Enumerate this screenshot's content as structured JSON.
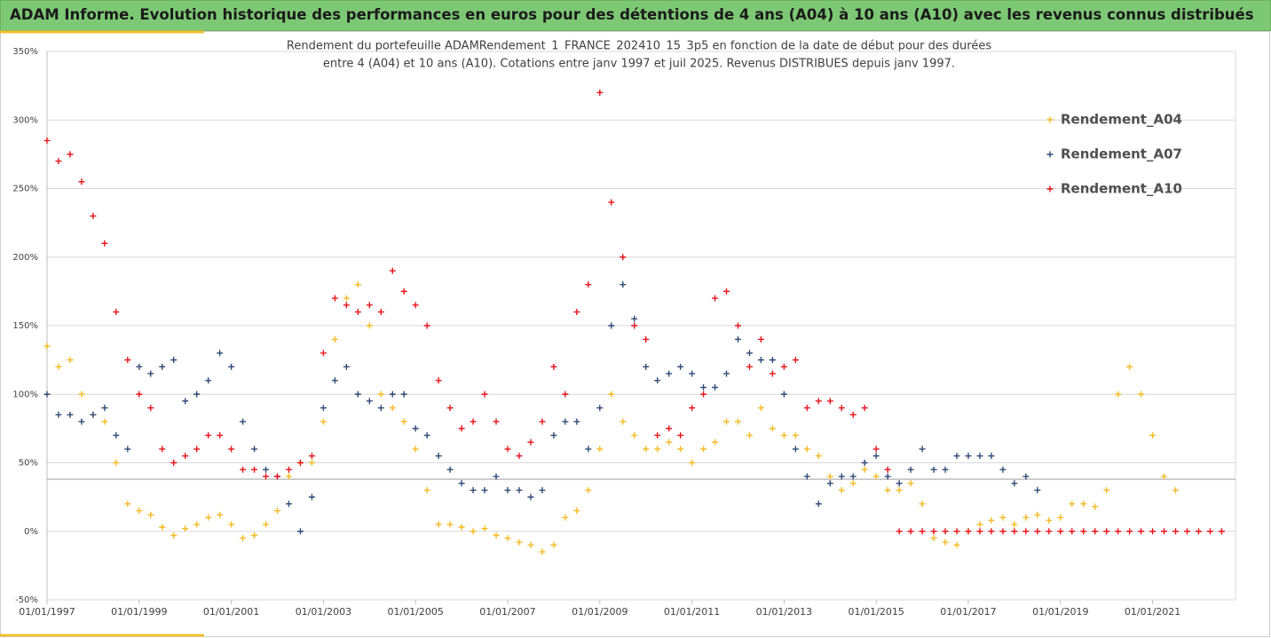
{
  "chart_data": {
    "type": "scatter",
    "title": "ADAM Informe. Evolution historique des performances en euros pour des détentions de 4 ans (A04) à 10 ans (A10) avec les revenus connus distribués",
    "subtitle": [
      "Rendement du portefeuille ADAMRendement_1_FRANCE_202410_15_3p5  en fonction de la date de début pour des durées",
      "entre 4 (A04) et 10 ans (A10). Cotations entre janv 1997 et juil 2025. Revenus DISTRIBUES depuis janv 1997."
    ],
    "xlim": [
      1997,
      2022.8
    ],
    "xticks": [
      {
        "value": 1997,
        "label": "01/01/1997"
      },
      {
        "value": 1999,
        "label": "01/01/1999"
      },
      {
        "value": 2001,
        "label": "01/01/2001"
      },
      {
        "value": 2003,
        "label": "01/01/2003"
      },
      {
        "value": 2005,
        "label": "01/01/2005"
      },
      {
        "value": 2007,
        "label": "01/01/2007"
      },
      {
        "value": 2009,
        "label": "01/01/2009"
      },
      {
        "value": 2011,
        "label": "01/01/2011"
      },
      {
        "value": 2013,
        "label": "01/01/2013"
      },
      {
        "value": 2015,
        "label": "01/01/2015"
      },
      {
        "value": 2017,
        "label": "01/01/2017"
      },
      {
        "value": 2019,
        "label": "01/01/2019"
      },
      {
        "value": 2021,
        "label": "01/01/2021"
      }
    ],
    "ylim": [
      -50,
      350
    ],
    "yticks": [
      {
        "value": -50,
        "label": "-50%"
      },
      {
        "value": 0,
        "label": "0%"
      },
      {
        "value": 50,
        "label": "50%"
      },
      {
        "value": 100,
        "label": "100%"
      },
      {
        "value": 150,
        "label": "150%"
      },
      {
        "value": 200,
        "label": "200%"
      },
      {
        "value": 250,
        "label": "250%"
      },
      {
        "value": 300,
        "label": "300%"
      },
      {
        "value": 350,
        "label": "350%"
      }
    ],
    "grid": true,
    "reference_line": 38,
    "legend": "right",
    "series": [
      {
        "name": "Rendement_A04",
        "color": "#f5b921",
        "x": [
          1997,
          1997.25,
          1997.5,
          1997.75,
          1998,
          1998.25,
          1998.5,
          1998.75,
          1999,
          1999.25,
          1999.5,
          1999.75,
          2000,
          2000.25,
          2000.5,
          2000.75,
          2001,
          2001.25,
          2001.5,
          2001.75,
          2002,
          2002.25,
          2002.5,
          2002.75,
          2003,
          2003.25,
          2003.5,
          2003.75,
          2004,
          2004.25,
          2004.5,
          2004.75,
          2005,
          2005.25,
          2005.5,
          2005.75,
          2006,
          2006.25,
          2006.5,
          2006.75,
          2007,
          2007.25,
          2007.5,
          2007.75,
          2008,
          2008.25,
          2008.5,
          2008.75,
          2009,
          2009.25,
          2009.5,
          2009.75,
          2010,
          2010.25,
          2010.5,
          2010.75,
          2011,
          2011.25,
          2011.5,
          2011.75,
          2012,
          2012.25,
          2012.5,
          2012.75,
          2013,
          2013.25,
          2013.5,
          2013.75,
          2014,
          2014.25,
          2014.5,
          2014.75,
          2015,
          2015.25,
          2015.5,
          2015.75,
          2016,
          2016.25,
          2016.5,
          2016.75,
          2017,
          2017.25,
          2017.5,
          2017.75,
          2018,
          2018.25,
          2018.5,
          2018.75,
          2019,
          2019.25,
          2019.5,
          2019.75,
          2020,
          2020.25,
          2020.5,
          2020.75,
          2021,
          2021.25,
          2021.5
        ],
        "values": [
          135,
          120,
          125,
          100,
          85,
          80,
          50,
          20,
          15,
          12,
          3,
          -3,
          2,
          5,
          10,
          12,
          5,
          -5,
          -3,
          5,
          15,
          40,
          50,
          50,
          80,
          140,
          170,
          180,
          150,
          100,
          90,
          80,
          60,
          30,
          5,
          5,
          3,
          0,
          2,
          -3,
          -5,
          -8,
          -10,
          -15,
          -10,
          10,
          15,
          30,
          60,
          100,
          80,
          70,
          60,
          60,
          65,
          60,
          50,
          60,
          65,
          80,
          80,
          70,
          90,
          75,
          70,
          70,
          60,
          55,
          40,
          30,
          35,
          45,
          40,
          30,
          30,
          35,
          20,
          -5,
          -8,
          -10,
          0,
          5,
          8,
          10,
          5,
          10,
          12,
          8,
          10,
          20,
          20,
          18,
          30,
          100,
          120,
          100,
          70,
          40,
          30
        ]
      },
      {
        "name": "Rendement_A07",
        "color": "#2e4a78",
        "x": [
          1997,
          1997.25,
          1997.5,
          1997.75,
          1998,
          1998.25,
          1998.5,
          1998.75,
          1999,
          1999.25,
          1999.5,
          1999.75,
          2000,
          2000.25,
          2000.5,
          2000.75,
          2001,
          2001.25,
          2001.5,
          2001.75,
          2002,
          2002.25,
          2002.5,
          2002.75,
          2003,
          2003.25,
          2003.5,
          2003.75,
          2004,
          2004.25,
          2004.5,
          2004.75,
          2005,
          2005.25,
          2005.5,
          2005.75,
          2006,
          2006.25,
          2006.5,
          2006.75,
          2007,
          2007.25,
          2007.5,
          2007.75,
          2008,
          2008.25,
          2008.5,
          2008.75,
          2009,
          2009.25,
          2009.5,
          2009.75,
          2010,
          2010.25,
          2010.5,
          2010.75,
          2011,
          2011.25,
          2011.5,
          2011.75,
          2012,
          2012.25,
          2012.5,
          2012.75,
          2013,
          2013.25,
          2013.5,
          2013.75,
          2014,
          2014.25,
          2014.5,
          2014.75,
          2015,
          2015.25,
          2015.5,
          2015.75,
          2016,
          2016.25,
          2016.5,
          2016.75,
          2017,
          2017.25,
          2017.5,
          2017.75,
          2018,
          2018.25,
          2018.5
        ],
        "values": [
          100,
          85,
          85,
          80,
          85,
          90,
          70,
          60,
          120,
          115,
          120,
          125,
          95,
          100,
          110,
          130,
          120,
          80,
          60,
          45,
          40,
          20,
          0,
          25,
          90,
          110,
          120,
          100,
          95,
          90,
          100,
          100,
          75,
          70,
          55,
          45,
          35,
          30,
          30,
          40,
          30,
          30,
          25,
          30,
          70,
          80,
          80,
          60,
          90,
          150,
          180,
          155,
          120,
          110,
          115,
          120,
          115,
          105,
          105,
          115,
          140,
          130,
          125,
          125,
          100,
          60,
          40,
          20,
          35,
          40,
          40,
          50,
          55,
          40,
          35,
          45,
          60,
          45,
          45,
          55,
          55,
          55,
          55,
          45,
          35,
          40,
          30
        ]
      },
      {
        "name": "Rendement_A10",
        "color": "#e8141b",
        "x": [
          1997,
          1997.25,
          1997.5,
          1997.75,
          1998,
          1998.25,
          1998.5,
          1998.75,
          1999,
          1999.25,
          1999.5,
          1999.75,
          2000,
          2000.25,
          2000.5,
          2000.75,
          2001,
          2001.25,
          2001.5,
          2001.75,
          2002,
          2002.25,
          2002.5,
          2002.75,
          2003,
          2003.25,
          2003.5,
          2003.75,
          2004,
          2004.25,
          2004.5,
          2004.75,
          2005,
          2005.25,
          2005.5,
          2005.75,
          2006,
          2006.25,
          2006.5,
          2006.75,
          2007,
          2007.25,
          2007.5,
          2007.75,
          2008,
          2008.25,
          2008.5,
          2008.75,
          2009,
          2009.25,
          2009.5,
          2009.75,
          2010,
          2010.25,
          2010.5,
          2010.75,
          2011,
          2011.25,
          2011.5,
          2011.75,
          2012,
          2012.25,
          2012.5,
          2012.75,
          2013,
          2013.25,
          2013.5,
          2013.75,
          2014,
          2014.25,
          2014.5,
          2014.75,
          2015,
          2015.25,
          2015.5,
          2015.75,
          2016,
          2016.25,
          2016.5,
          2016.75,
          2017,
          2017.25,
          2017.5,
          2017.75,
          2018,
          2018.25,
          2018.5,
          2018.75,
          2019,
          2019.25,
          2019.5,
          2019.75,
          2020,
          2020.25,
          2020.5,
          2020.75,
          2021,
          2021.25,
          2021.5,
          2021.75,
          2022,
          2022.25,
          2022.5
        ],
        "values": [
          285,
          270,
          275,
          255,
          230,
          210,
          160,
          125,
          100,
          90,
          60,
          50,
          55,
          60,
          70,
          70,
          60,
          45,
          45,
          40,
          40,
          45,
          50,
          55,
          130,
          170,
          165,
          160,
          165,
          160,
          190,
          175,
          165,
          150,
          110,
          90,
          75,
          80,
          100,
          80,
          60,
          55,
          65,
          80,
          120,
          100,
          160,
          180,
          320,
          240,
          200,
          150,
          140,
          70,
          75,
          70,
          90,
          100,
          170,
          175,
          150,
          120,
          140,
          115,
          120,
          125,
          90,
          95,
          95,
          90,
          85,
          90,
          60,
          45,
          0,
          0,
          0,
          0,
          0,
          0,
          0,
          0,
          0,
          0,
          0,
          0,
          0,
          0,
          0,
          0,
          0,
          0,
          0,
          0,
          0,
          0,
          0,
          0,
          0,
          0,
          0,
          0,
          0
        ]
      }
    ]
  }
}
